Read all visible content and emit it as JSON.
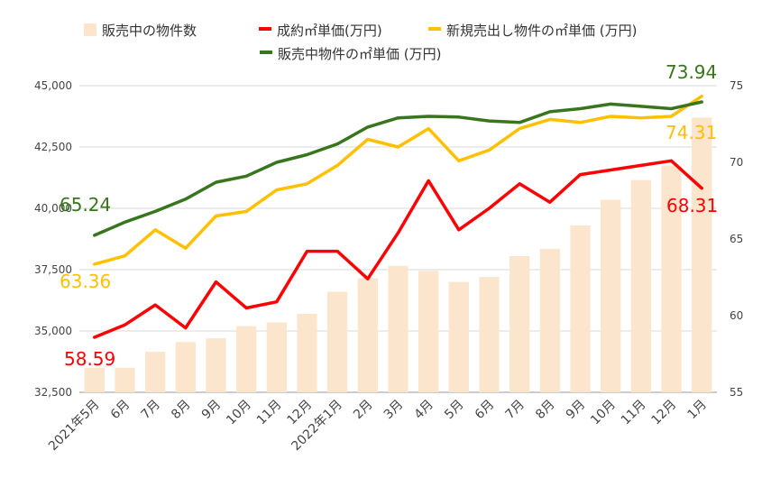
{
  "chart_data": {
    "type": "bar",
    "categories": [
      "2021年5月",
      "6月",
      "7月",
      "8月",
      "9月",
      "10月",
      "11月",
      "12月",
      "2022年1月",
      "2月",
      "3月",
      "4月",
      "5月",
      "6月",
      "7月",
      "8月",
      "9月",
      "10月",
      "11月",
      "12月",
      "1月"
    ],
    "y_left_ticks": [
      "32,500",
      "35,000",
      "37,500",
      "40,000",
      "42,500",
      "45,000"
    ],
    "y_right_ticks": [
      "55",
      "60",
      "65",
      "70",
      "75"
    ],
    "ylim_left": [
      32500,
      45000
    ],
    "ylim_right": [
      55,
      75
    ],
    "grid": true,
    "legend_position": "top",
    "series": [
      {
        "name": "販売中の物件数",
        "type": "bar",
        "axis": "left",
        "color": "#fce5cd",
        "values": [
          33500,
          33500,
          34150,
          34550,
          34700,
          35200,
          35350,
          35700,
          36600,
          37150,
          37650,
          37450,
          37000,
          37200,
          38050,
          38350,
          39300,
          40350,
          41150,
          41750,
          43700
        ]
      },
      {
        "name": "成約㎡単価(万円)",
        "type": "line",
        "axis": "right",
        "color": "#ff0000",
        "values": [
          58.59,
          59.4,
          60.7,
          59.2,
          62.2,
          60.5,
          60.9,
          64.2,
          64.2,
          62.4,
          65.4,
          68.8,
          65.6,
          67.0,
          68.6,
          67.4,
          69.2,
          69.5,
          69.8,
          70.1,
          68.31
        ]
      },
      {
        "name": "新規売出し物件の㎡単価 (万円)",
        "type": "line",
        "axis": "right",
        "color": "#ffc000",
        "values": [
          63.36,
          63.9,
          65.6,
          64.4,
          66.5,
          66.8,
          68.2,
          68.6,
          69.8,
          71.5,
          71.0,
          72.2,
          70.1,
          70.8,
          72.2,
          72.8,
          72.6,
          73.0,
          72.9,
          73.0,
          74.31
        ]
      },
      {
        "name": "販売中物件の㎡単価 (万円)",
        "type": "line",
        "axis": "right",
        "color": "#38761d",
        "values": [
          65.24,
          66.1,
          66.8,
          67.6,
          68.7,
          69.1,
          70.0,
          70.5,
          71.2,
          72.3,
          72.9,
          73.0,
          72.95,
          72.7,
          72.6,
          73.3,
          73.5,
          73.8,
          73.65,
          73.5,
          73.94
        ]
      }
    ],
    "annotations": [
      {
        "text": "65.24",
        "color": "#38761d"
      },
      {
        "text": "63.36",
        "color": "#ffc000"
      },
      {
        "text": "58.59",
        "color": "#ff0000"
      },
      {
        "text": "73.94",
        "color": "#38761d"
      },
      {
        "text": "74.31",
        "color": "#ffc000"
      },
      {
        "text": "68.31",
        "color": "#ff0000"
      }
    ]
  }
}
